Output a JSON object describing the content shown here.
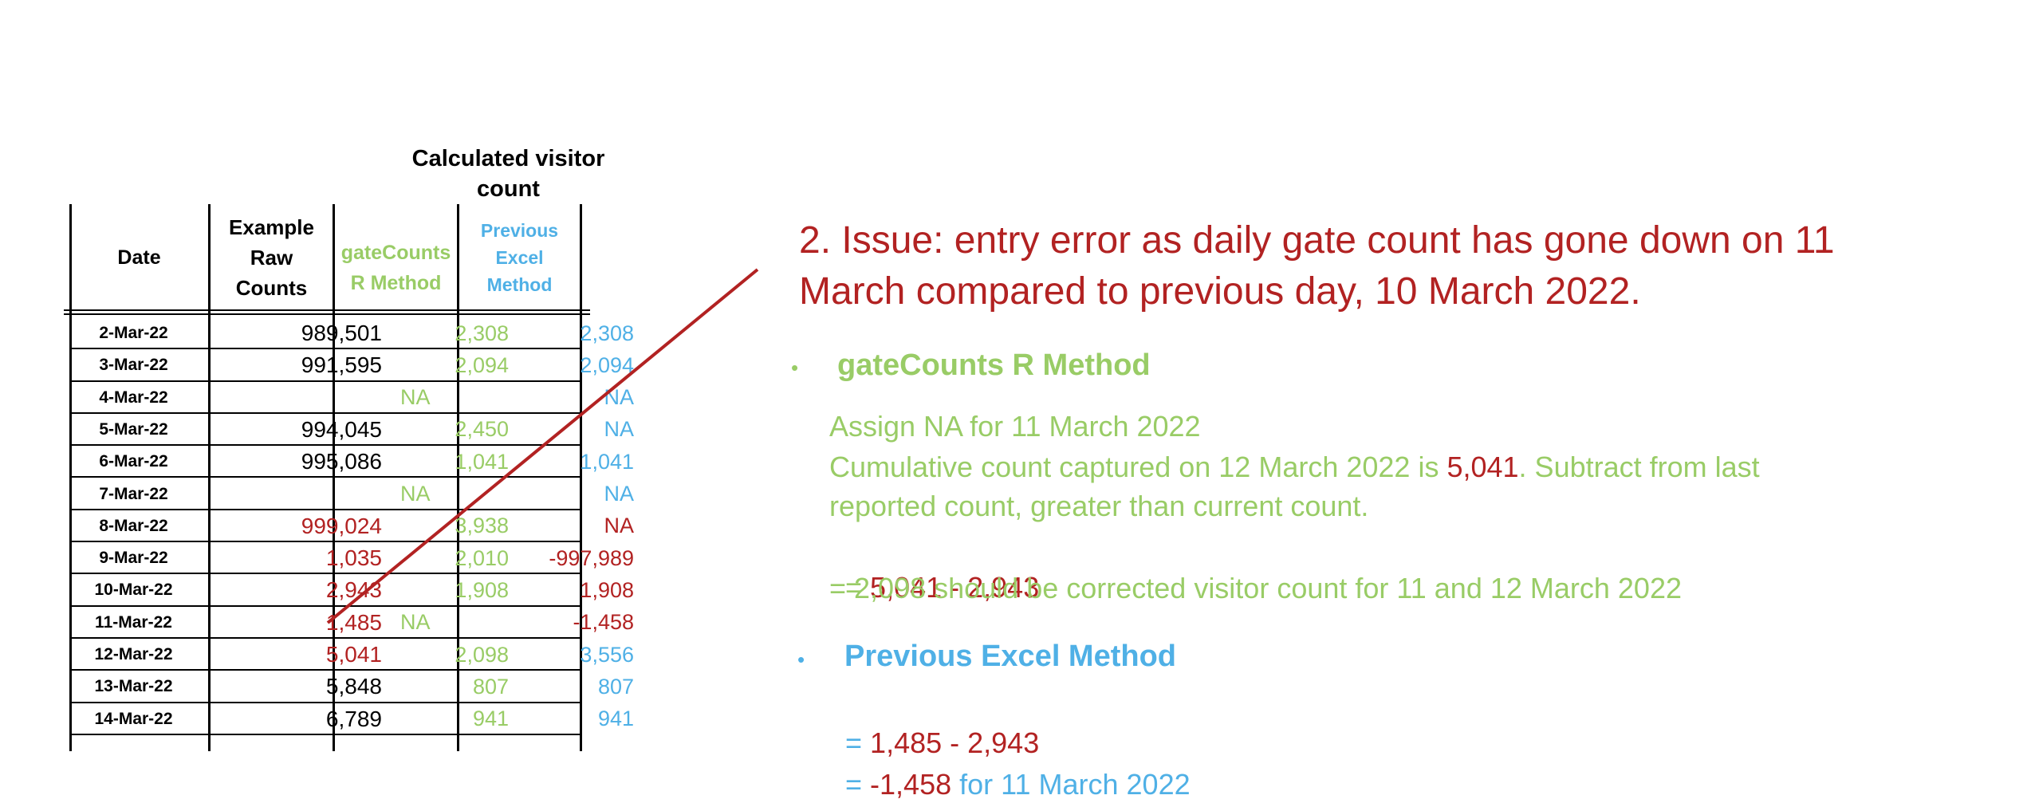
{
  "table": {
    "super_header": "Calculated visitor count",
    "headers": {
      "date": "Date",
      "raw": [
        "Example",
        "Raw",
        "Counts"
      ],
      "r_method": [
        "gateCounts",
        "R Method"
      ],
      "excel": [
        "Previous",
        "Excel",
        "Method"
      ]
    },
    "rows": [
      {
        "date": "2-Mar-22",
        "raw": "989,501",
        "r": "2,308",
        "excel": "2,308",
        "raw_color": "black"
      },
      {
        "date": "3-Mar-22",
        "raw": "991,595",
        "r": "2,094",
        "excel": "2,094",
        "raw_color": "black"
      },
      {
        "date": "4-Mar-22",
        "raw": "",
        "r": "NA",
        "excel": "NA",
        "raw_color": "black"
      },
      {
        "date": "5-Mar-22",
        "raw": "994,045",
        "r": "2,450",
        "excel": "NA",
        "raw_color": "black"
      },
      {
        "date": "6-Mar-22",
        "raw": "995,086",
        "r": "1,041",
        "excel": "1,041",
        "raw_color": "black"
      },
      {
        "date": "7-Mar-22",
        "raw": "",
        "r": "NA",
        "excel": "NA",
        "raw_color": "black"
      },
      {
        "date": "8-Mar-22",
        "raw": "999,024",
        "r": "3,938",
        "excel": "NA",
        "raw_color": "red",
        "excel_color": "red"
      },
      {
        "date": "9-Mar-22",
        "raw": "1,035",
        "r": "2,010",
        "excel": "-997,989",
        "raw_color": "red",
        "excel_color": "red"
      },
      {
        "date": "10-Mar-22",
        "raw": "2,943",
        "r": "1,908",
        "excel": "1,908",
        "raw_color": "red",
        "excel_color": "red"
      },
      {
        "date": "11-Mar-22",
        "raw": "1,485",
        "r": "NA",
        "excel": "-1,458",
        "raw_color": "red",
        "excel_color": "red"
      },
      {
        "date": "12-Mar-22",
        "raw": "5,041",
        "r": "2,098",
        "excel": "3,556",
        "raw_color": "red"
      },
      {
        "date": "13-Mar-22",
        "raw": "5,848",
        "r": "807",
        "excel": "807",
        "raw_color": "black"
      },
      {
        "date": "14-Mar-22",
        "raw": "6,789",
        "r": "941",
        "excel": "941",
        "raw_color": "black"
      }
    ]
  },
  "issue": {
    "title": "2. Issue: entry error as daily gate count has gone down on 11 March compared to previous day, 10 March 2022."
  },
  "r_method": {
    "bullet": "•",
    "heading": "gateCounts R Method",
    "line1": "Assign NA for 11 March 2022",
    "line2_pre": "Cumulative count captured on 12 March 2022 is ",
    "line2_value": "5,041",
    "line2_post": ". Subtract from last",
    "line3": "reported count, greater than current count.",
    "line4_eq": "= ",
    "line4_value": "5,041 - 2,943",
    "line5": "= 2,098 should be corrected visitor count for 11 and 12 March 2022"
  },
  "excel_method": {
    "bullet": "•",
    "heading": "Previous Excel Method",
    "line1_eq": "= ",
    "line1_value": "1,485 - 2,943",
    "line2_eq": "= ",
    "line2_value": "-1,458",
    "line2_post": " for 11 March 2022"
  },
  "colors": {
    "red": "#b22222",
    "green": "#99cc66",
    "blue": "#4fb0e6"
  }
}
